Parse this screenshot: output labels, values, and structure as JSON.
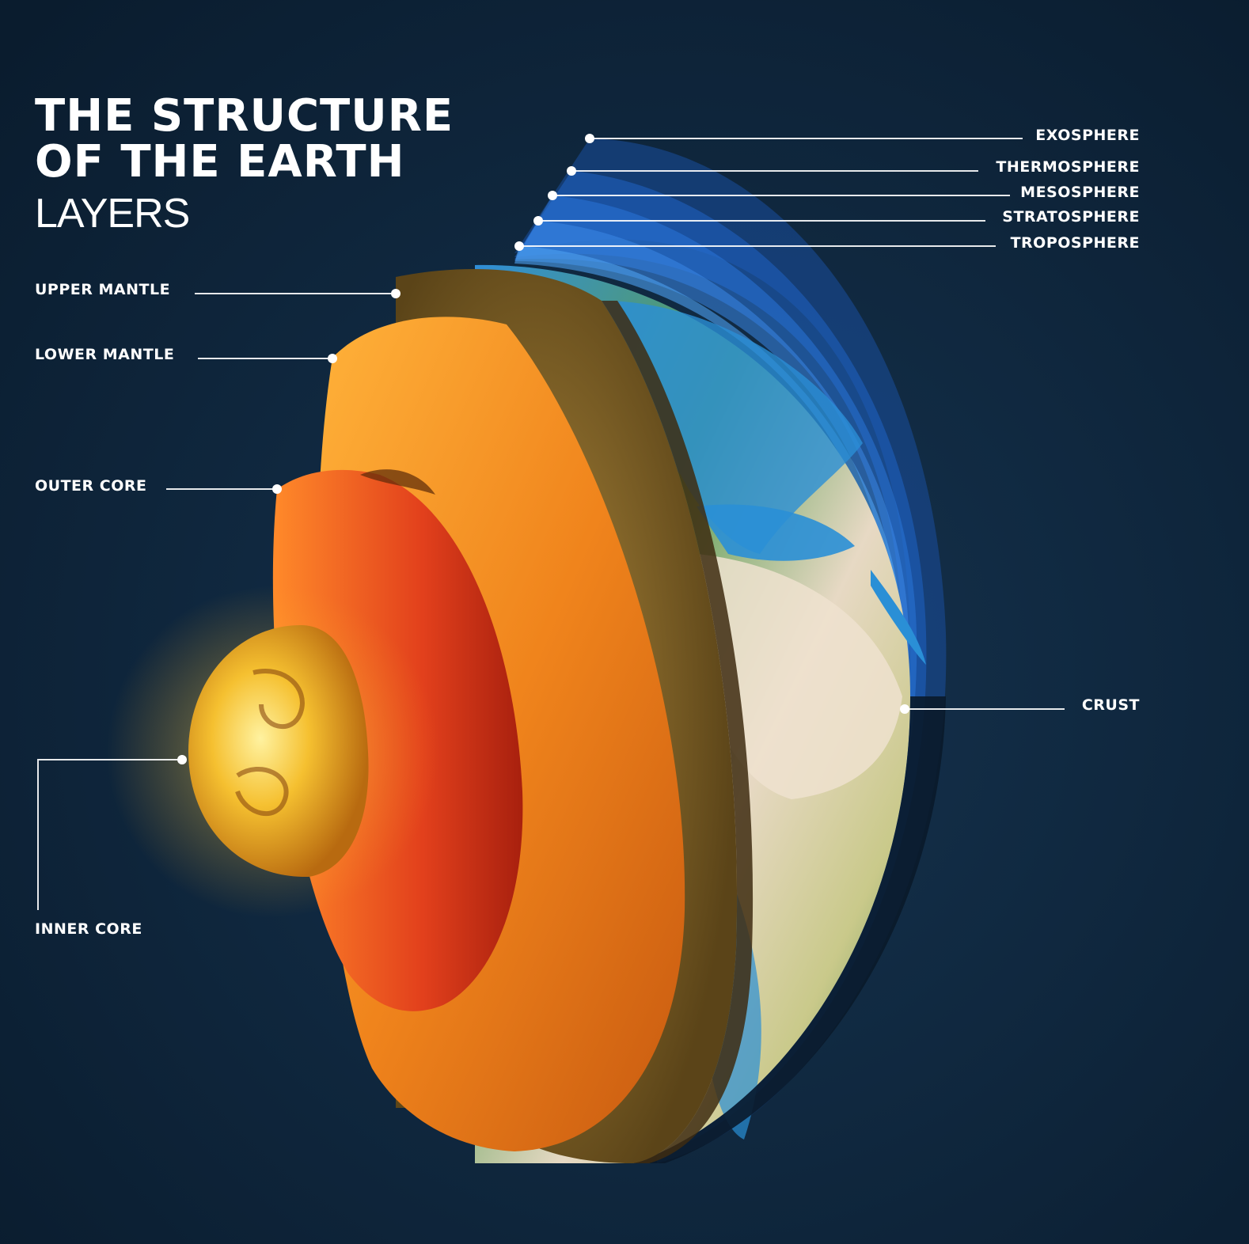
{
  "title": {
    "line1": "THE STRUCTURE",
    "line2": "OF THE EARTH",
    "subtitle": "LAYERS"
  },
  "labels": {
    "exosphere": "EXOSPHERE",
    "thermosphere": "THERMOSPHERE",
    "mesosphere": "MESOSPHERE",
    "stratosphere": "STRATOSPHERE",
    "troposphere": "TROPOSPHERE",
    "upper_mantle": "UPPER MANTLE",
    "lower_mantle": "LOWER MANTLE",
    "outer_core": "OUTER CORE",
    "inner_core": "INNER CORE",
    "crust": "CRUST"
  },
  "colors": {
    "background": "#0b1f33",
    "atmosphere": "#1f6fd6",
    "ocean": "#2a8fd6",
    "land": "#6fae5a",
    "desert": "#e6d8c0",
    "upper_mantle": "#8a6a28",
    "lower_mantle": "#f08a1e",
    "outer_core": "#e2401c",
    "inner_core": "#ffd23a"
  }
}
